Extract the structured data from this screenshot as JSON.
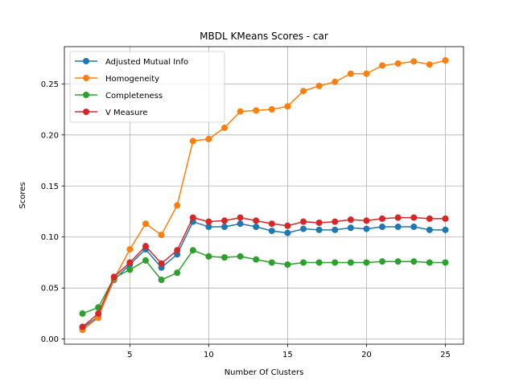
{
  "chart_data": {
    "type": "line",
    "title": "MBDL KMeans Scores - car",
    "xlabel": "Number Of Clusters",
    "ylabel": "Scores",
    "xlim": [
      0.85,
      26.15
    ],
    "ylim": [
      -0.005,
      0.2865
    ],
    "xticks": [
      5,
      10,
      15,
      20,
      25
    ],
    "yticks": [
      0.0,
      0.05,
      0.1,
      0.15,
      0.2,
      0.25
    ],
    "ytick_labels": [
      "0.00",
      "0.05",
      "0.10",
      "0.15",
      "0.20",
      "0.25"
    ],
    "grid": true,
    "legend_position": "top-left",
    "x": [
      2,
      3,
      4,
      5,
      6,
      7,
      8,
      9,
      10,
      11,
      12,
      13,
      14,
      15,
      16,
      17,
      18,
      19,
      20,
      21,
      22,
      23,
      24,
      25
    ],
    "series": [
      {
        "name": "Adjusted Mutual Info",
        "color": "#1f77b4",
        "values": [
          0.011,
          0.022,
          0.058,
          0.073,
          0.088,
          0.07,
          0.083,
          0.115,
          0.11,
          0.11,
          0.113,
          0.11,
          0.106,
          0.104,
          0.108,
          0.107,
          0.107,
          0.109,
          0.108,
          0.11,
          0.11,
          0.11,
          0.107,
          0.107
        ]
      },
      {
        "name": "Homogeneity",
        "color": "#ff7f0e",
        "values": [
          0.009,
          0.021,
          0.059,
          0.088,
          0.113,
          0.102,
          0.131,
          0.194,
          0.196,
          0.207,
          0.223,
          0.224,
          0.225,
          0.228,
          0.243,
          0.248,
          0.252,
          0.26,
          0.26,
          0.268,
          0.27,
          0.272,
          0.269,
          0.273
        ]
      },
      {
        "name": "Completeness",
        "color": "#2ca02c",
        "values": [
          0.025,
          0.031,
          0.06,
          0.068,
          0.077,
          0.058,
          0.065,
          0.087,
          0.081,
          0.08,
          0.081,
          0.078,
          0.075,
          0.073,
          0.075,
          0.075,
          0.075,
          0.075,
          0.075,
          0.076,
          0.076,
          0.076,
          0.075,
          0.075
        ]
      },
      {
        "name": "V Measure",
        "color": "#d62728",
        "values": [
          0.012,
          0.025,
          0.061,
          0.075,
          0.091,
          0.074,
          0.087,
          0.119,
          0.115,
          0.116,
          0.119,
          0.116,
          0.113,
          0.111,
          0.115,
          0.114,
          0.115,
          0.117,
          0.116,
          0.118,
          0.119,
          0.119,
          0.118,
          0.118
        ]
      }
    ]
  }
}
